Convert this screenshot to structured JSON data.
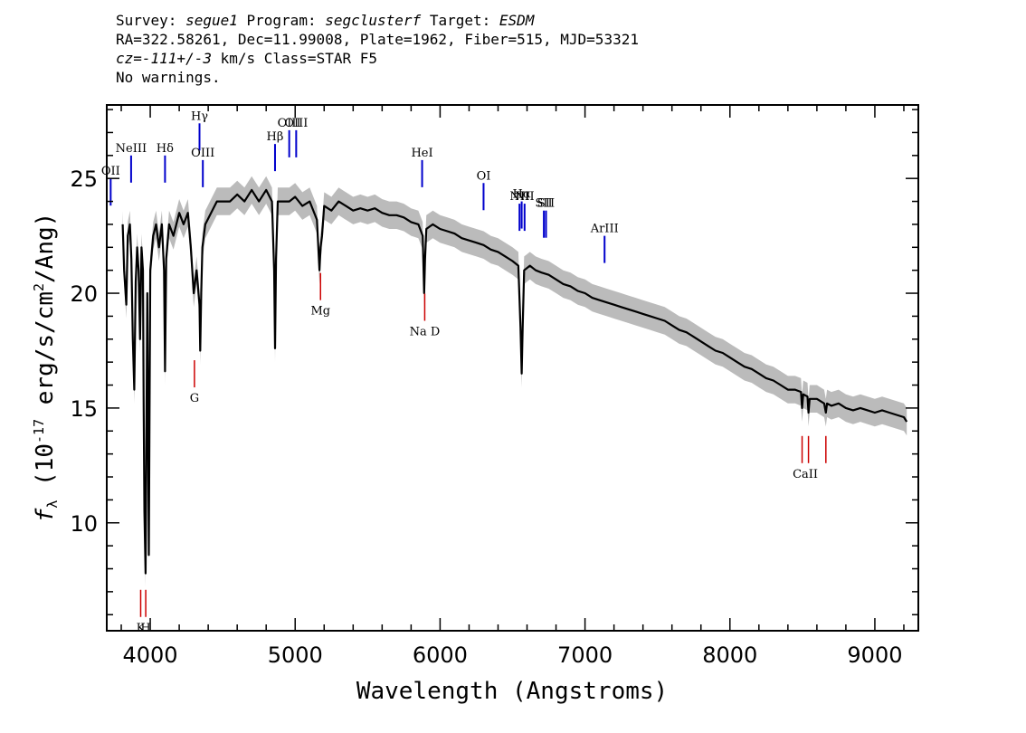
{
  "header": {
    "line1": {
      "survey_label": "Survey:",
      "survey": "segue1",
      "program_label": "Program:",
      "program": "segclusterf",
      "target_label": "Target:",
      "target": "ESDM"
    },
    "line2": "RA=322.58261, Dec=11.99008, Plate=1962, Fiber=515, MJD=53321",
    "line3": {
      "cz": "cz=-111+/-3",
      "rest": " km/s Class=STAR F5"
    },
    "line4": "No warnings."
  },
  "chart_data": {
    "type": "line",
    "xlabel": "Wavelength (Angstroms)",
    "ylabel": "f_λ (10^-17 erg/s/cm^2/Ang)",
    "xlim": [
      3700,
      9300
    ],
    "ylim": [
      5.3,
      28.2
    ],
    "xticks": [
      4000,
      5000,
      6000,
      7000,
      8000,
      9000
    ],
    "yticks": [
      10,
      15,
      20,
      25
    ],
    "colors": {
      "spectrum": "#000000",
      "error": "#bbbbbb",
      "emission": "#0000cc",
      "absorption": "#cc0000"
    },
    "series": [
      {
        "role": "spectrum",
        "points": [
          [
            3810,
            23.0
          ],
          [
            3820,
            21.0
          ],
          [
            3835,
            19.5
          ],
          [
            3845,
            22.5
          ],
          [
            3860,
            23.0
          ],
          [
            3870,
            21.5
          ],
          [
            3880,
            18.0
          ],
          [
            3890,
            15.8
          ],
          [
            3900,
            20.5
          ],
          [
            3910,
            22.0
          ],
          [
            3920,
            21.0
          ],
          [
            3930,
            18.0
          ],
          [
            3940,
            22.0
          ],
          [
            3950,
            21.0
          ],
          [
            3955,
            15.0
          ],
          [
            3960,
            10.5
          ],
          [
            3968,
            7.8
          ],
          [
            3975,
            15.0
          ],
          [
            3980,
            20.0
          ],
          [
            3985,
            14.0
          ],
          [
            3990,
            8.6
          ],
          [
            3995,
            15.0
          ],
          [
            4000,
            21.0
          ],
          [
            4020,
            22.5
          ],
          [
            4040,
            23.0
          ],
          [
            4060,
            22.0
          ],
          [
            4080,
            23.0
          ],
          [
            4095,
            21.0
          ],
          [
            4102,
            16.6
          ],
          [
            4110,
            21.5
          ],
          [
            4130,
            23.0
          ],
          [
            4160,
            22.5
          ],
          [
            4200,
            23.5
          ],
          [
            4230,
            23.0
          ],
          [
            4260,
            23.5
          ],
          [
            4280,
            22.0
          ],
          [
            4300,
            20.0
          ],
          [
            4320,
            21.0
          ],
          [
            4340,
            19.5
          ],
          [
            4345,
            17.5
          ],
          [
            4352,
            20.0
          ],
          [
            4360,
            22.0
          ],
          [
            4380,
            23.0
          ],
          [
            4420,
            23.5
          ],
          [
            4460,
            24.0
          ],
          [
            4500,
            24.0
          ],
          [
            4550,
            24.0
          ],
          [
            4600,
            24.3
          ],
          [
            4650,
            24.0
          ],
          [
            4700,
            24.5
          ],
          [
            4750,
            24.0
          ],
          [
            4800,
            24.5
          ],
          [
            4840,
            24.0
          ],
          [
            4855,
            21.0
          ],
          [
            4861,
            17.6
          ],
          [
            4868,
            21.5
          ],
          [
            4880,
            24.0
          ],
          [
            4920,
            24.0
          ],
          [
            4960,
            24.0
          ],
          [
            5000,
            24.2
          ],
          [
            5050,
            23.8
          ],
          [
            5100,
            24.0
          ],
          [
            5150,
            23.2
          ],
          [
            5168,
            21.0
          ],
          [
            5175,
            22.0
          ],
          [
            5185,
            22.5
          ],
          [
            5200,
            23.8
          ],
          [
            5250,
            23.6
          ],
          [
            5300,
            24.0
          ],
          [
            5350,
            23.8
          ],
          [
            5400,
            23.6
          ],
          [
            5450,
            23.7
          ],
          [
            5500,
            23.6
          ],
          [
            5550,
            23.7
          ],
          [
            5600,
            23.5
          ],
          [
            5650,
            23.4
          ],
          [
            5700,
            23.4
          ],
          [
            5750,
            23.3
          ],
          [
            5800,
            23.1
          ],
          [
            5850,
            23.0
          ],
          [
            5880,
            22.5
          ],
          [
            5890,
            20.0
          ],
          [
            5896,
            21.5
          ],
          [
            5905,
            22.8
          ],
          [
            5950,
            23.0
          ],
          [
            6000,
            22.8
          ],
          [
            6050,
            22.7
          ],
          [
            6100,
            22.6
          ],
          [
            6150,
            22.4
          ],
          [
            6200,
            22.3
          ],
          [
            6250,
            22.2
          ],
          [
            6300,
            22.1
          ],
          [
            6350,
            21.9
          ],
          [
            6400,
            21.8
          ],
          [
            6450,
            21.6
          ],
          [
            6500,
            21.4
          ],
          [
            6540,
            21.2
          ],
          [
            6555,
            18.5
          ],
          [
            6563,
            16.5
          ],
          [
            6570,
            18.5
          ],
          [
            6580,
            21.0
          ],
          [
            6620,
            21.2
          ],
          [
            6660,
            21.0
          ],
          [
            6700,
            20.9
          ],
          [
            6750,
            20.8
          ],
          [
            6800,
            20.6
          ],
          [
            6850,
            20.4
          ],
          [
            6900,
            20.3
          ],
          [
            6950,
            20.1
          ],
          [
            7000,
            20.0
          ],
          [
            7050,
            19.8
          ],
          [
            7100,
            19.7
          ],
          [
            7150,
            19.6
          ],
          [
            7200,
            19.5
          ],
          [
            7250,
            19.4
          ],
          [
            7300,
            19.3
          ],
          [
            7350,
            19.2
          ],
          [
            7400,
            19.1
          ],
          [
            7450,
            19.0
          ],
          [
            7500,
            18.9
          ],
          [
            7550,
            18.8
          ],
          [
            7600,
            18.6
          ],
          [
            7650,
            18.4
          ],
          [
            7700,
            18.3
          ],
          [
            7750,
            18.1
          ],
          [
            7800,
            17.9
          ],
          [
            7850,
            17.7
          ],
          [
            7900,
            17.5
          ],
          [
            7950,
            17.4
          ],
          [
            8000,
            17.2
          ],
          [
            8050,
            17.0
          ],
          [
            8100,
            16.8
          ],
          [
            8150,
            16.7
          ],
          [
            8200,
            16.5
          ],
          [
            8250,
            16.3
          ],
          [
            8300,
            16.2
          ],
          [
            8350,
            16.0
          ],
          [
            8400,
            15.8
          ],
          [
            8450,
            15.8
          ],
          [
            8490,
            15.7
          ],
          [
            8498,
            15.0
          ],
          [
            8506,
            15.6
          ],
          [
            8535,
            15.5
          ],
          [
            8542,
            14.8
          ],
          [
            8550,
            15.4
          ],
          [
            8600,
            15.4
          ],
          [
            8650,
            15.2
          ],
          [
            8662,
            14.8
          ],
          [
            8670,
            15.2
          ],
          [
            8700,
            15.1
          ],
          [
            8750,
            15.2
          ],
          [
            8800,
            15.0
          ],
          [
            8850,
            14.9
          ],
          [
            8900,
            15.0
          ],
          [
            8950,
            14.9
          ],
          [
            9000,
            14.8
          ],
          [
            9050,
            14.9
          ],
          [
            9100,
            14.8
          ],
          [
            9150,
            14.7
          ],
          [
            9200,
            14.6
          ],
          [
            9220,
            14.4
          ]
        ]
      },
      {
        "role": "error",
        "halfwidth": 0.6
      }
    ],
    "emission_lines": [
      {
        "label": "OII",
        "x": 3727,
        "y": 25.0
      },
      {
        "label": "NeIII",
        "x": 3868,
        "y": 26.0
      },
      {
        "label": "Hδ",
        "x": 4102,
        "y": 26.0
      },
      {
        "label": "Hγ",
        "x": 4340,
        "y": 27.4
      },
      {
        "label": "OIII",
        "x": 4363,
        "y": 25.8
      },
      {
        "label": "Hβ",
        "x": 4861,
        "y": 26.5
      },
      {
        "label": "OIII",
        "x": 4959,
        "y": 27.1
      },
      {
        "label": "OIII",
        "x": 5007,
        "y": 27.1
      },
      {
        "label": "HeI",
        "x": 5876,
        "y": 25.8
      },
      {
        "label": "OI",
        "x": 6300,
        "y": 24.8
      },
      {
        "label": "NII",
        "x": 6548,
        "y": 23.9
      },
      {
        "label": "Hα",
        "x": 6563,
        "y": 24.0
      },
      {
        "label": "NII",
        "x": 6583,
        "y": 23.9
      },
      {
        "label": "SII",
        "x": 6716,
        "y": 23.6
      },
      {
        "label": "SII",
        "x": 6731,
        "y": 23.6
      },
      {
        "label": "ArIII",
        "x": 7135,
        "y": 22.5
      }
    ],
    "absorption_lines": [
      {
        "label": "K",
        "x": 3934,
        "y": 5.9
      },
      {
        "label": "H",
        "x": 3969,
        "y": 5.9
      },
      {
        "label": "G",
        "x": 4305,
        "y": 15.9
      },
      {
        "label": "Mg",
        "x": 5175,
        "y": 19.7
      },
      {
        "label": "Na D",
        "x": 5894,
        "y": 18.8
      },
      {
        "label": "CaII",
        "x": 8498,
        "y": 12.6
      },
      {
        "label": "CaII",
        "x": 8542,
        "y": 12.6
      },
      {
        "label": "CaII",
        "x": 8662,
        "y": 12.6
      }
    ]
  }
}
